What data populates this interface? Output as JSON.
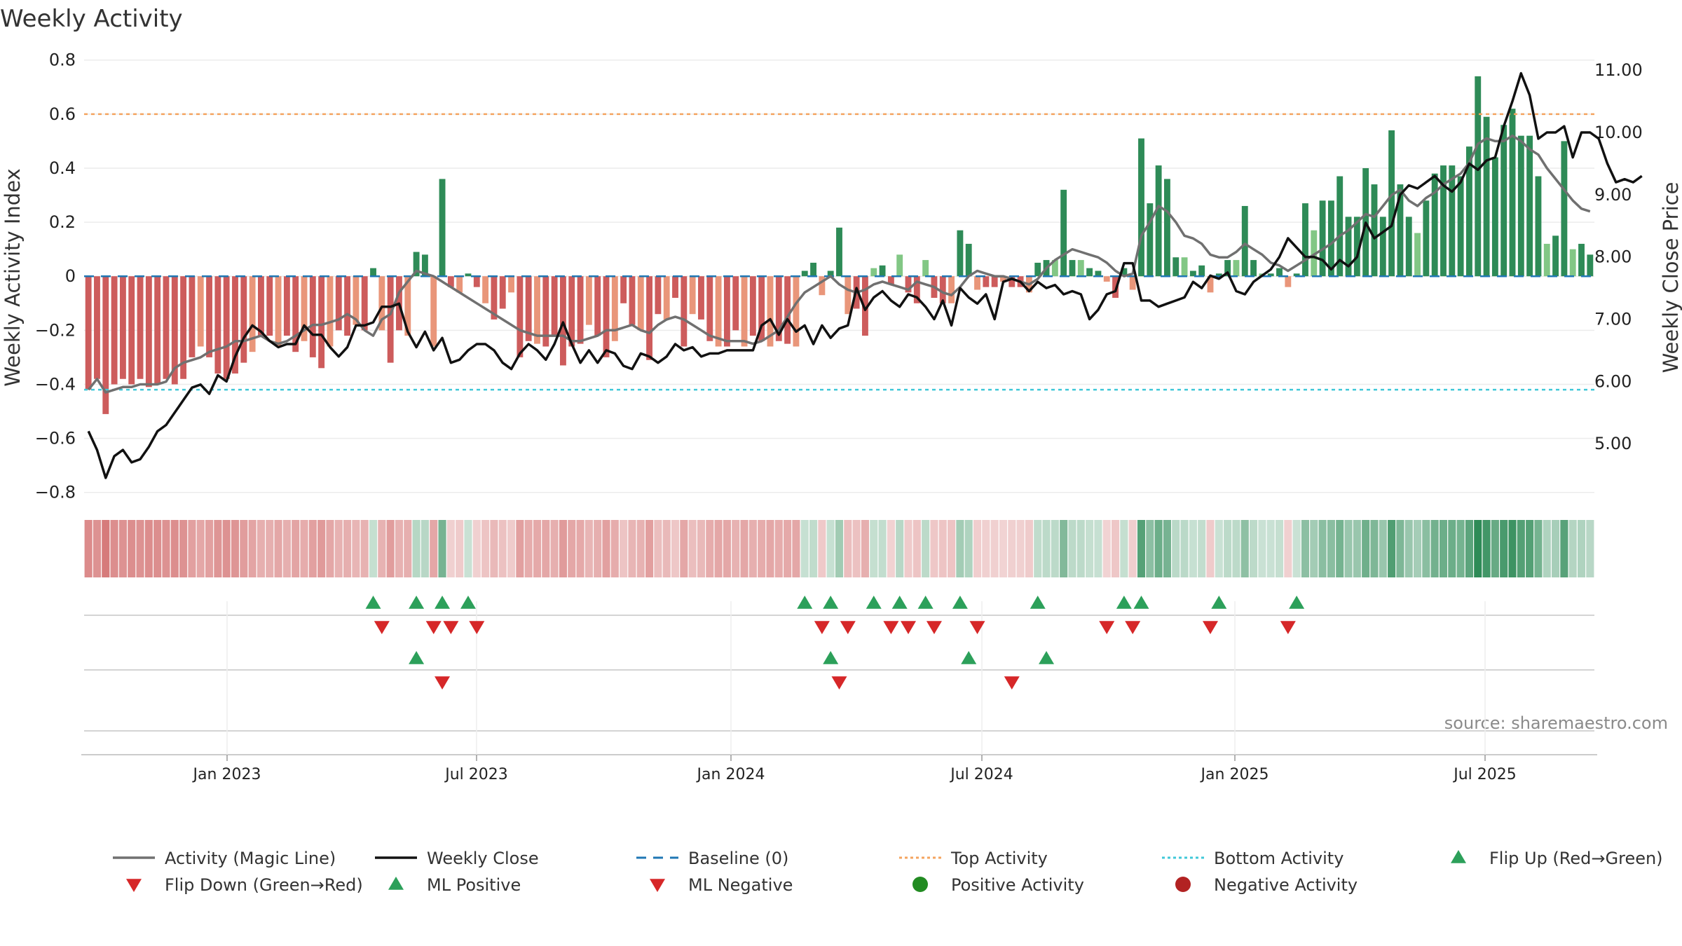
{
  "chart_data": {
    "type": "bar",
    "title": "Weekly Activity",
    "ylabel_left": "Weekly Activity Index",
    "ylabel_right": "Weekly Close Price",
    "ylim_left": [
      -0.85,
      0.82
    ],
    "ylim_right": [
      4.0,
      11.25
    ],
    "yticks_left": [
      "0.8",
      "0.6",
      "0.4",
      "0.2",
      "0",
      "−0.2",
      "−0.4",
      "−0.6",
      "−0.8"
    ],
    "yticks_right": [
      "11.00",
      "10.00",
      "9.00",
      "8.00",
      "7.00",
      "6.00",
      "5.00"
    ],
    "x_tick_labels": [
      "Jan 2023",
      "Jul 2023",
      "Jan 2024",
      "Jul 2024",
      "Jan 2025",
      "Jul 2025"
    ],
    "source": "source: sharemaestro.com",
    "top_activity": 0.6,
    "bottom_activity": -0.42,
    "colors": {
      "pos_dark": "#2e8b57",
      "pos_light": "#82c785",
      "neg_dark": "#cd5c5c",
      "neg_light": "#e9967a",
      "magic_line": "#707070",
      "close": "#111111",
      "baseline": "#1f77b4",
      "top": "#f4a460",
      "bottom": "#40c8d8",
      "up": "#2ca05a",
      "down": "#d62728",
      "pos_dot": "#228b22",
      "neg_dot": "#b22222"
    },
    "activity": [
      -0.42,
      -0.38,
      -0.51,
      -0.4,
      -0.38,
      -0.4,
      -0.38,
      -0.41,
      -0.4,
      -0.38,
      -0.4,
      -0.38,
      -0.3,
      -0.26,
      -0.3,
      -0.36,
      -0.38,
      -0.36,
      -0.32,
      -0.28,
      -0.22,
      -0.22,
      -0.26,
      -0.22,
      -0.28,
      -0.24,
      -0.3,
      -0.34,
      -0.26,
      -0.2,
      -0.22,
      -0.18,
      -0.2,
      0.03,
      -0.2,
      -0.32,
      -0.2,
      -0.22,
      0.09,
      0.08,
      -0.26,
      0.36,
      -0.04,
      -0.06,
      0.01,
      -0.04,
      -0.1,
      -0.16,
      -0.12,
      -0.06,
      -0.3,
      -0.24,
      -0.25,
      -0.26,
      -0.22,
      -0.33,
      -0.26,
      -0.25,
      -0.18,
      -0.22,
      -0.3,
      -0.24,
      -0.1,
      -0.18,
      -0.2,
      -0.31,
      -0.14,
      -0.16,
      -0.08,
      -0.26,
      -0.14,
      -0.16,
      -0.24,
      -0.26,
      -0.26,
      -0.2,
      -0.26,
      -0.22,
      -0.24,
      -0.26,
      -0.24,
      -0.25,
      -0.26,
      0.02,
      0.05,
      -0.07,
      0.02,
      0.18,
      -0.14,
      -0.12,
      -0.22,
      0.03,
      0.04,
      -0.03,
      0.08,
      -0.06,
      -0.1,
      0.06,
      -0.08,
      -0.1,
      -0.1,
      0.17,
      0.12,
      -0.05,
      -0.04,
      -0.04,
      -0.02,
      -0.04,
      -0.04,
      -0.06,
      0.05,
      0.06,
      0.06,
      0.32,
      0.06,
      0.06,
      0.03,
      0.02,
      -0.02,
      -0.08,
      0.03,
      -0.05,
      0.51,
      0.27,
      0.41,
      0.36,
      0.07,
      0.07,
      0.02,
      0.04,
      -0.06,
      0.01,
      0.06,
      0.06,
      0.26,
      0.06,
      0.01,
      0.01,
      0.03,
      -0.04,
      0.01,
      0.27,
      0.17,
      0.28,
      0.28,
      0.37,
      0.22,
      0.22,
      0.4,
      0.34,
      0.22,
      0.54,
      0.34,
      0.22,
      0.16,
      0.28,
      0.38,
      0.41,
      0.41,
      0.37,
      0.48,
      0.74,
      0.59,
      0.44,
      0.56,
      0.62,
      0.52,
      0.52,
      0.37,
      0.12,
      0.15,
      0.5,
      0.1,
      0.12,
      0.08
    ],
    "magic_line": [
      -0.42,
      -0.38,
      -0.43,
      -0.42,
      -0.41,
      -0.41,
      -0.4,
      -0.4,
      -0.4,
      -0.39,
      -0.34,
      -0.32,
      -0.31,
      -0.3,
      -0.28,
      -0.27,
      -0.26,
      -0.24,
      -0.24,
      -0.23,
      -0.22,
      -0.24,
      -0.25,
      -0.24,
      -0.22,
      -0.2,
      -0.18,
      -0.18,
      -0.17,
      -0.16,
      -0.14,
      -0.16,
      -0.2,
      -0.22,
      -0.16,
      -0.14,
      -0.06,
      -0.02,
      0.02,
      0.01,
      0.0,
      -0.02,
      -0.04,
      -0.06,
      -0.08,
      -0.1,
      -0.12,
      -0.14,
      -0.16,
      -0.18,
      -0.2,
      -0.21,
      -0.22,
      -0.22,
      -0.22,
      -0.22,
      -0.24,
      -0.24,
      -0.23,
      -0.22,
      -0.2,
      -0.2,
      -0.19,
      -0.18,
      -0.2,
      -0.21,
      -0.18,
      -0.16,
      -0.15,
      -0.16,
      -0.18,
      -0.2,
      -0.22,
      -0.23,
      -0.24,
      -0.24,
      -0.24,
      -0.25,
      -0.24,
      -0.22,
      -0.2,
      -0.15,
      -0.1,
      -0.06,
      -0.04,
      -0.02,
      0.0,
      -0.03,
      -0.05,
      -0.06,
      -0.05,
      -0.03,
      -0.02,
      -0.03,
      -0.04,
      -0.05,
      -0.02,
      -0.03,
      -0.04,
      -0.06,
      -0.07,
      -0.04,
      0.0,
      0.02,
      0.01,
      0.0,
      0.0,
      -0.01,
      -0.02,
      -0.03,
      -0.01,
      0.03,
      0.06,
      0.08,
      0.1,
      0.09,
      0.08,
      0.07,
      0.05,
      0.02,
      0.0,
      0.01,
      0.15,
      0.2,
      0.26,
      0.24,
      0.2,
      0.15,
      0.14,
      0.12,
      0.08,
      0.07,
      0.07,
      0.09,
      0.12,
      0.1,
      0.08,
      0.05,
      0.04,
      0.02,
      0.04,
      0.06,
      0.08,
      0.1,
      0.12,
      0.15,
      0.17,
      0.2,
      0.23,
      0.22,
      0.26,
      0.3,
      0.32,
      0.28,
      0.26,
      0.29,
      0.31,
      0.34,
      0.36,
      0.38,
      0.42,
      0.49,
      0.51,
      0.5,
      0.5,
      0.52,
      0.5,
      0.47,
      0.45,
      0.4,
      0.36,
      0.32,
      0.28,
      0.25,
      0.24
    ],
    "close": [
      5.2,
      4.9,
      4.45,
      4.8,
      4.9,
      4.7,
      4.75,
      4.95,
      5.2,
      5.3,
      5.5,
      5.7,
      5.9,
      5.95,
      5.8,
      6.1,
      6.0,
      6.4,
      6.7,
      6.9,
      6.8,
      6.65,
      6.55,
      6.6,
      6.6,
      6.9,
      6.75,
      6.75,
      6.55,
      6.4,
      6.55,
      6.9,
      6.9,
      6.95,
      7.2,
      7.2,
      7.25,
      6.8,
      6.55,
      6.8,
      6.5,
      6.7,
      6.3,
      6.35,
      6.5,
      6.6,
      6.6,
      6.5,
      6.3,
      6.2,
      6.45,
      6.6,
      6.5,
      6.35,
      6.6,
      6.95,
      6.6,
      6.3,
      6.5,
      6.3,
      6.5,
      6.45,
      6.25,
      6.2,
      6.45,
      6.4,
      6.3,
      6.4,
      6.6,
      6.5,
      6.55,
      6.4,
      6.45,
      6.45,
      6.5,
      6.5,
      6.5,
      6.5,
      6.9,
      7.0,
      6.75,
      7.0,
      6.8,
      6.9,
      6.6,
      6.9,
      6.7,
      6.85,
      6.9,
      7.5,
      7.15,
      7.35,
      7.45,
      7.3,
      7.2,
      7.4,
      7.35,
      7.2,
      7.0,
      7.3,
      6.9,
      7.5,
      7.35,
      7.25,
      7.4,
      7.0,
      7.6,
      7.65,
      7.6,
      7.45,
      7.6,
      7.5,
      7.55,
      7.4,
      7.45,
      7.4,
      7.0,
      7.15,
      7.4,
      7.45,
      7.9,
      7.9,
      7.3,
      7.3,
      7.2,
      7.25,
      7.3,
      7.35,
      7.6,
      7.5,
      7.7,
      7.65,
      7.75,
      7.45,
      7.4,
      7.6,
      7.7,
      7.8,
      8.0,
      8.3,
      8.15,
      8.0,
      8.0,
      7.95,
      7.8,
      7.95,
      7.85,
      8.0,
      8.55,
      8.3,
      8.4,
      8.5,
      9.0,
      9.15,
      9.1,
      9.2,
      9.3,
      9.15,
      9.05,
      9.2,
      9.5,
      9.4,
      9.55,
      9.6,
      10.1,
      10.5,
      10.95,
      10.6,
      9.9,
      10.0,
      10.0,
      10.1,
      9.6,
      10.0,
      10.0,
      9.9,
      9.5,
      9.2,
      9.25,
      9.2,
      9.3
    ]
  },
  "legend": [
    {
      "label": "Activity (Magic Line)",
      "kind": "line",
      "color": "#707070"
    },
    {
      "label": "Weekly Close",
      "kind": "line",
      "color": "#111111"
    },
    {
      "label": "Baseline (0)",
      "kind": "dash",
      "color": "#1f77b4"
    },
    {
      "label": "Top Activity",
      "kind": "dot",
      "color": "#f4a460"
    },
    {
      "label": "Bottom Activity",
      "kind": "dot",
      "color": "#40c8d8"
    },
    {
      "label": "Flip Up (Red→Green)",
      "kind": "up",
      "color": "#2ca05a"
    },
    {
      "label": "Flip Down (Green→Red)",
      "kind": "down",
      "color": "#d62728"
    },
    {
      "label": "ML Positive",
      "kind": "up",
      "color": "#2ca05a"
    },
    {
      "label": "ML Negative",
      "kind": "down",
      "color": "#d62728"
    },
    {
      "label": "Positive Activity",
      "kind": "circle",
      "color": "#228b22"
    },
    {
      "label": "Negative Activity",
      "kind": "circle",
      "color": "#b22222"
    }
  ]
}
